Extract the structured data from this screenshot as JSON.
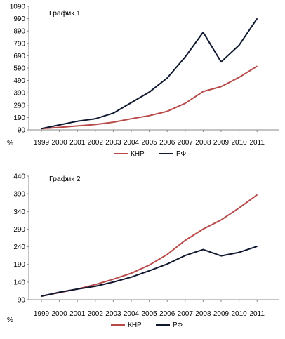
{
  "chart_data": [
    {
      "type": "line",
      "title": "График 1",
      "ylabel": "%",
      "x": [
        "1999",
        "2000",
        "2001",
        "2002",
        "2003",
        "2004",
        "2005",
        "2006",
        "2007",
        "2008",
        "2009",
        "2010",
        "2011"
      ],
      "y_ticks": [
        "90",
        "190",
        "290",
        "390",
        "490",
        "590",
        "690",
        "790",
        "890",
        "990",
        "1090"
      ],
      "ylim": [
        90,
        1090
      ],
      "grid": false,
      "legend_position": "bottom",
      "series": [
        {
          "name": "КНР",
          "color": "#b84a4a",
          "values": [
            100,
            110,
            122,
            133,
            152,
            180,
            205,
            240,
            305,
            400,
            440,
            515,
            605
          ]
        },
        {
          "name": "РФ",
          "color": "#101830",
          "values": [
            100,
            130,
            160,
            180,
            225,
            310,
            395,
            510,
            680,
            880,
            640,
            775,
            990
          ]
        }
      ]
    },
    {
      "type": "line",
      "title": "График 2",
      "ylabel": "%",
      "x": [
        "1999",
        "2000",
        "2001",
        "2002",
        "2003",
        "2004",
        "2005",
        "2006",
        "2007",
        "2008",
        "2009",
        "2010",
        "2011"
      ],
      "y_ticks": [
        "90",
        "140",
        "190",
        "240",
        "290",
        "340",
        "390",
        "440"
      ],
      "ylim": [
        90,
        440
      ],
      "grid": false,
      "legend_position": "bottom",
      "series": [
        {
          "name": "КНР",
          "color": "#b84a4a",
          "values": [
            100,
            110,
            120,
            133,
            148,
            165,
            188,
            218,
            258,
            290,
            316,
            350,
            387
          ]
        },
        {
          "name": "РФ",
          "color": "#101830",
          "values": [
            100,
            111,
            120,
            128,
            140,
            154,
            172,
            191,
            215,
            232,
            214,
            224,
            241
          ]
        }
      ]
    }
  ]
}
